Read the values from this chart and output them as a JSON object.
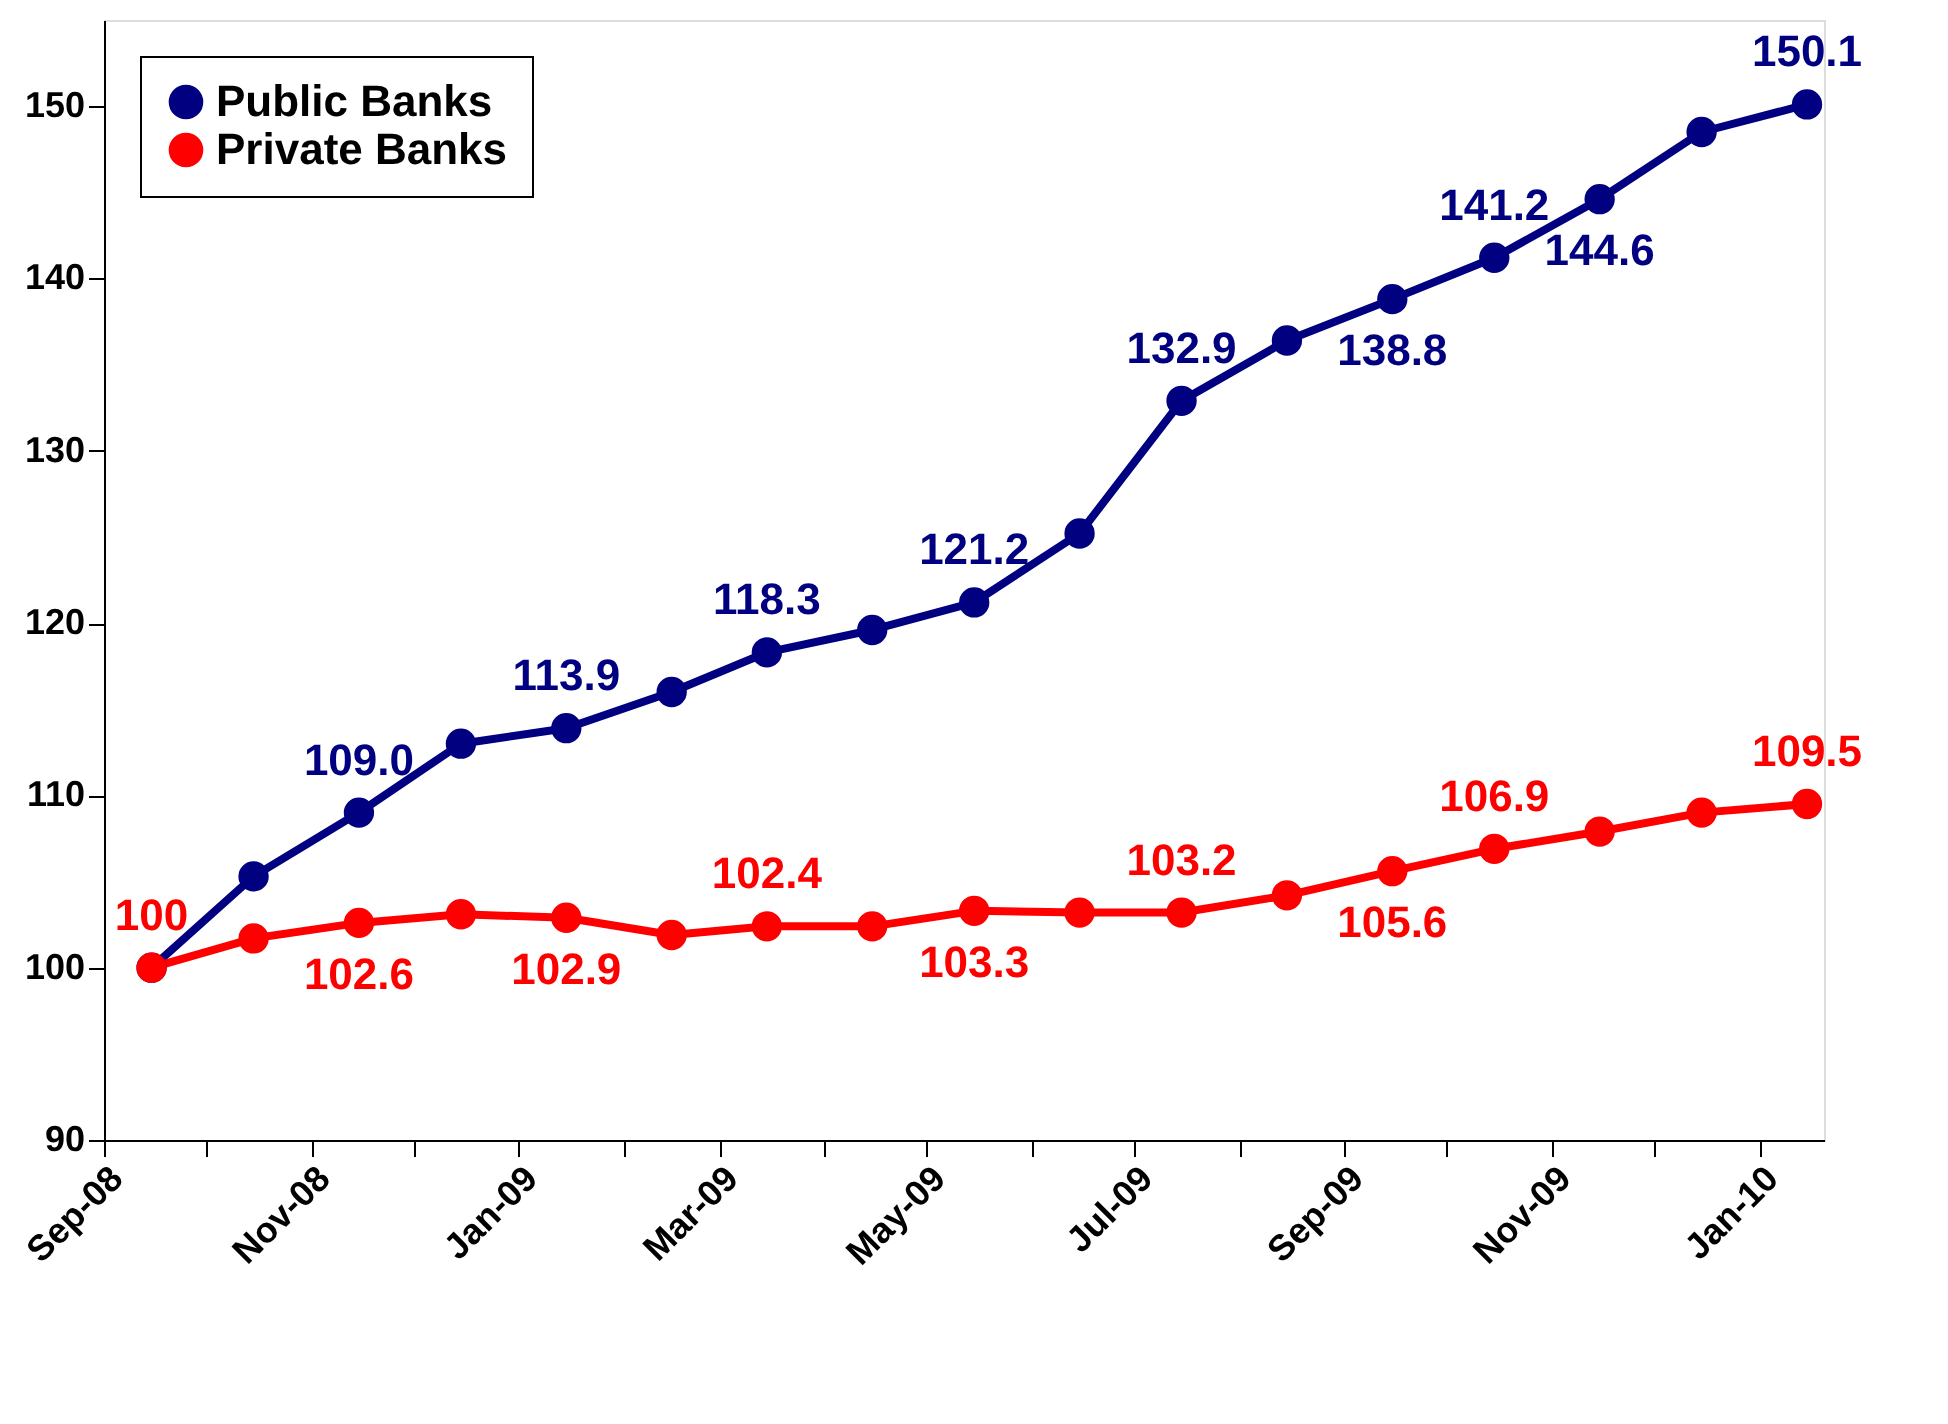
{
  "chart_data": {
    "type": "line",
    "x": [
      "2008-09-15",
      "2008-10-15",
      "2008-11-15",
      "2008-12-15",
      "2009-01-15",
      "2009-02-15",
      "2009-03-15",
      "2009-04-15",
      "2009-05-15",
      "2009-06-15",
      "2009-07-15",
      "2009-08-15",
      "2009-09-15",
      "2009-10-15",
      "2009-11-15",
      "2009-12-15",
      "2010-01-15"
    ],
    "series": [
      {
        "name": "Public Banks",
        "color": "#000080",
        "values": [
          100,
          105.3,
          109.0,
          113.0,
          113.9,
          116.0,
          118.3,
          119.6,
          121.2,
          125.2,
          132.9,
          136.4,
          138.8,
          141.2,
          144.6,
          148.5,
          150.1
        ],
        "value_labels": [
          null,
          null,
          "109.0",
          null,
          "113.9",
          null,
          "118.3",
          null,
          "121.2",
          null,
          "132.9",
          null,
          "138.8",
          "141.2",
          "144.6",
          null,
          "150.1"
        ]
      },
      {
        "name": "Private Banks",
        "color": "#ff0000",
        "values": [
          100,
          101.7,
          102.6,
          103.1,
          102.9,
          101.9,
          102.4,
          102.4,
          103.3,
          103.2,
          103.2,
          104.2,
          105.6,
          106.9,
          107.9,
          109.0,
          109.5
        ],
        "value_labels": [
          "100",
          null,
          "102.6",
          null,
          "102.9",
          null,
          "102.4",
          null,
          "103.3",
          null,
          "103.2",
          null,
          "105.6",
          "106.9",
          null,
          null,
          "109.5"
        ]
      }
    ],
    "xlim": [
      "2008-09-01",
      "2010-01-20"
    ],
    "xticks": [
      {
        "value": "2008-09-01",
        "label": "Sep-08"
      },
      {
        "value": "2008-10-01",
        "label": null
      },
      {
        "value": "2008-11-01",
        "label": "Nov-08"
      },
      {
        "value": "2008-12-01",
        "label": null
      },
      {
        "value": "2009-01-01",
        "label": "Jan-09"
      },
      {
        "value": "2009-02-01",
        "label": null
      },
      {
        "value": "2009-03-01",
        "label": "Mar-09"
      },
      {
        "value": "2009-04-01",
        "label": null
      },
      {
        "value": "2009-05-01",
        "label": "May-09"
      },
      {
        "value": "2009-06-01",
        "label": null
      },
      {
        "value": "2009-07-01",
        "label": "Jul-09"
      },
      {
        "value": "2009-08-01",
        "label": null
      },
      {
        "value": "2009-09-01",
        "label": "Sep-09"
      },
      {
        "value": "2009-10-01",
        "label": null
      },
      {
        "value": "2009-11-01",
        "label": "Nov-09"
      },
      {
        "value": "2009-12-01",
        "label": null
      },
      {
        "value": "2010-01-01",
        "label": "Jan-10"
      }
    ],
    "ylim": [
      90,
      155
    ],
    "yticks": [
      90,
      100,
      110,
      120,
      130,
      140,
      150
    ],
    "grid": false,
    "legend": "top left",
    "marker": "circle",
    "line_style": "solid"
  }
}
